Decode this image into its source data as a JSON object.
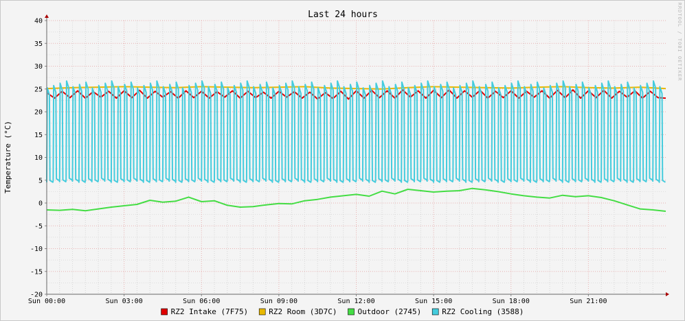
{
  "chart_data": {
    "type": "line",
    "title": "Last 24 hours",
    "ylabel": "Temperature (°C)",
    "watermark": "RRDTOOL / TOBI OETIKER",
    "ylim": [
      -20,
      40
    ],
    "yticks": [
      -20,
      -15,
      -10,
      -5,
      0,
      5,
      10,
      15,
      20,
      25,
      30,
      35,
      40
    ],
    "xlim": [
      0,
      24
    ],
    "xticks": [
      {
        "hour": 0,
        "label": "Sun 00:00"
      },
      {
        "hour": 3,
        "label": "Sun 03:00"
      },
      {
        "hour": 6,
        "label": "Sun 06:00"
      },
      {
        "hour": 9,
        "label": "Sun 09:00"
      },
      {
        "hour": 12,
        "label": "Sun 12:00"
      },
      {
        "hour": 15,
        "label": "Sun 15:00"
      },
      {
        "hour": 18,
        "label": "Sun 18:00"
      },
      {
        "hour": 21,
        "label": "Sun 21:00"
      }
    ],
    "grid": true,
    "legend_position": "bottom",
    "series": [
      {
        "name": "RZ2 Intake (7F75)",
        "color": "#e00000",
        "x": [
          0,
          0.3,
          0.6,
          0.9,
          1.2,
          1.5,
          1.8,
          2.1,
          2.4,
          2.7,
          3.0,
          3.3,
          3.6,
          3.9,
          4.2,
          4.5,
          4.8,
          5.1,
          5.4,
          5.7,
          6.0,
          6.3,
          6.6,
          6.9,
          7.2,
          7.5,
          7.8,
          8.1,
          8.4,
          8.7,
          9.0,
          9.3,
          9.6,
          9.9,
          10.2,
          10.5,
          10.8,
          11.1,
          11.4,
          11.7,
          12.0,
          12.3,
          12.6,
          12.9,
          13.2,
          13.5,
          13.8,
          14.1,
          14.4,
          14.7,
          15.0,
          15.3,
          15.6,
          15.9,
          16.2,
          16.5,
          16.8,
          17.1,
          17.4,
          17.7,
          18.0,
          18.3,
          18.6,
          18.9,
          19.2,
          19.5,
          19.8,
          20.1,
          20.4,
          20.7,
          21.0,
          21.3,
          21.6,
          21.9,
          22.2,
          22.5,
          22.8,
          23.1,
          23.4,
          23.7,
          24.0
        ],
        "y": [
          24.2,
          23.0,
          24.5,
          23.1,
          24.6,
          23.0,
          24.4,
          23.2,
          24.5,
          23.0,
          24.6,
          23.1,
          24.7,
          23.0,
          24.5,
          23.2,
          24.4,
          23.0,
          24.6,
          23.1,
          24.5,
          23.0,
          24.4,
          23.2,
          24.6,
          23.0,
          24.5,
          23.1,
          24.3,
          23.0,
          24.5,
          23.2,
          24.4,
          23.0,
          24.3,
          22.8,
          24.2,
          22.9,
          24.5,
          22.8,
          24.6,
          23.0,
          24.7,
          23.1,
          24.6,
          23.0,
          24.8,
          23.2,
          24.6,
          23.0,
          24.7,
          23.1,
          24.8,
          23.0,
          24.6,
          23.2,
          24.7,
          23.0,
          24.5,
          23.1,
          24.6,
          23.0,
          24.5,
          23.2,
          24.6,
          23.0,
          24.7,
          23.1,
          24.8,
          23.0,
          24.6,
          23.1,
          24.7,
          23.0,
          24.5,
          23.2,
          24.6,
          23.0,
          24.5,
          23.1,
          23.0
        ]
      },
      {
        "name": "RZ2 Room (3D7C)",
        "color": "#e8b800",
        "x": [
          0,
          1,
          2,
          3,
          4,
          5,
          6,
          7,
          8,
          9,
          10,
          11,
          12,
          13,
          14,
          15,
          16,
          17,
          18,
          19,
          20,
          21,
          22,
          23,
          24
        ],
        "y": [
          25.1,
          25.3,
          25.4,
          25.5,
          25.4,
          25.3,
          25.5,
          25.4,
          25.3,
          25.4,
          25.5,
          25.2,
          25.1,
          25.0,
          25.3,
          25.5,
          25.4,
          25.3,
          25.2,
          25.4,
          25.5,
          25.3,
          25.2,
          25.4,
          25.1
        ]
      },
      {
        "name": "Outdoor (2745)",
        "color": "#44dd44",
        "x": [
          0,
          0.5,
          1.0,
          1.5,
          2.0,
          2.5,
          3.0,
          3.5,
          4.0,
          4.5,
          5.0,
          5.5,
          6.0,
          6.5,
          7.0,
          7.5,
          8.0,
          8.5,
          9.0,
          9.5,
          10.0,
          10.5,
          11.0,
          11.5,
          12.0,
          12.5,
          13.0,
          13.5,
          14.0,
          14.5,
          15.0,
          15.5,
          16.0,
          16.5,
          17.0,
          17.5,
          18.0,
          18.5,
          19.0,
          19.5,
          20.0,
          20.5,
          21.0,
          21.5,
          22.0,
          22.5,
          23.0,
          23.5,
          24.0
        ],
        "y": [
          -1.5,
          -1.6,
          -1.4,
          -1.7,
          -1.3,
          -0.9,
          -0.6,
          -0.3,
          0.6,
          0.2,
          0.4,
          1.3,
          0.3,
          0.5,
          -0.5,
          -0.9,
          -0.8,
          -0.4,
          -0.1,
          -0.2,
          0.5,
          0.8,
          1.3,
          1.6,
          1.9,
          1.5,
          2.6,
          2.0,
          3.0,
          2.7,
          2.4,
          2.6,
          2.7,
          3.2,
          2.9,
          2.5,
          2.0,
          1.6,
          1.3,
          1.1,
          1.7,
          1.4,
          1.6,
          1.2,
          0.5,
          -0.4,
          -1.3,
          -1.5,
          -1.8
        ]
      },
      {
        "name": "RZ2 Cooling (3588)",
        "color": "#44ccdd",
        "pattern": "periodic",
        "cycles": 96,
        "low": 4.8,
        "high": 26.0
      }
    ]
  }
}
